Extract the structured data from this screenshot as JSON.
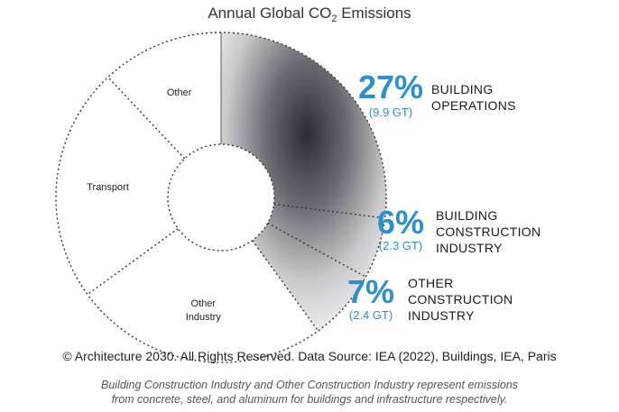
{
  "chart_data": {
    "type": "pie",
    "title_prefix": "Annual Global CO",
    "title_subscript": "2",
    "title_suffix": " Emissions",
    "segments": [
      {
        "key": "building_operations",
        "name": "BUILDING OPERATIONS",
        "lines": [
          "BUILDING",
          "OPERATIONS"
        ],
        "value": 27,
        "pct_label": "27%",
        "gt_label": "(9.9 GT)",
        "highlight": true
      },
      {
        "key": "building_construction",
        "name": "BUILDING CONSTRUCTION INDUSTRY",
        "lines": [
          "BUILDING",
          "CONSTRUCTION",
          "INDUSTRY"
        ],
        "value": 6,
        "pct_label": "6%",
        "gt_label": "(2.3 GT)",
        "highlight": true
      },
      {
        "key": "other_construction",
        "name": "OTHER CONSTRUCTION INDUSTRY",
        "lines": [
          "OTHER",
          "CONSTRUCTION",
          "INDUSTRY"
        ],
        "value": 7,
        "pct_label": "7%",
        "gt_label": "(2.4 GT)",
        "highlight": true
      },
      {
        "key": "other_industry",
        "name": "Other Industry",
        "lines": [
          "Other",
          "Industry"
        ],
        "value": 25,
        "highlight": false
      },
      {
        "key": "transport",
        "name": "Transport",
        "lines": [
          "Transport"
        ],
        "value": 23,
        "highlight": false
      },
      {
        "key": "other",
        "name": "Other",
        "lines": [
          "Other"
        ],
        "value": 12,
        "highlight": false
      }
    ]
  },
  "credit": "© Architecture 2030. All Rights Reserved. Data Source: IEA (2022), Buildings, IEA, Paris",
  "footnote_lines": [
    "Building Construction Industry and Other Construction Industry represent emissions",
    "from concrete, steel, and aluminum for buildings and infrastructure respectively."
  ],
  "colors": {
    "accent": "#2f8fc7",
    "highlight_dark": "#2c2c35",
    "highlight_light": "#f4f4f4",
    "divider": "#333333"
  }
}
